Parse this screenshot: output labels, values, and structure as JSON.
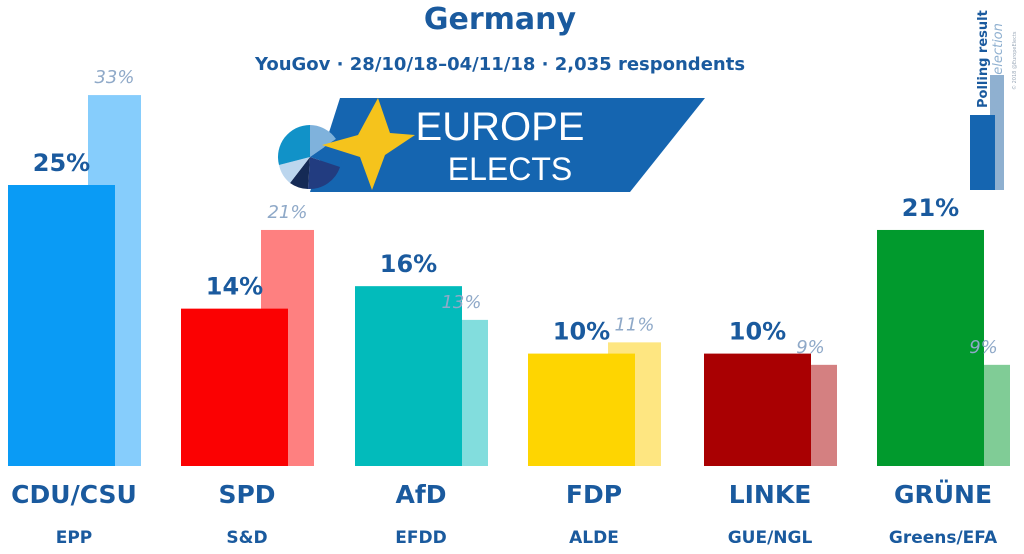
{
  "header": {
    "title": "Germany",
    "subtitle": "YouGov · 28/10/18–04/11/18 · 2,035 respondents"
  },
  "logo": {
    "line1": "EUROPE",
    "line2": "ELECTS",
    "banner_color": "#1565b0",
    "star_color": "#f5c31c"
  },
  "legend": {
    "current_label": "Polling result",
    "previous_label": "2017 election",
    "copyright": "© 2018 @EuropeElects",
    "current_color": "#1565b0",
    "previous_color": "#8fb0d0"
  },
  "chart_data": {
    "type": "bar",
    "title": "Germany",
    "subtitle": "YouGov · 28/10/18–04/11/18 · 2,035 respondents",
    "xlabel": "",
    "ylabel": "",
    "ylim": [
      0,
      35
    ],
    "grid": false,
    "legend_placement": "top-right",
    "categories": [
      "CDU/CSU",
      "SPD",
      "AfD",
      "FDP",
      "LINKE",
      "GRÜNE"
    ],
    "groups": [
      "EPP",
      "S&D",
      "EFDD",
      "ALDE",
      "GUE/NGL",
      "Greens/EFA"
    ],
    "series": [
      {
        "name": "Polling result",
        "values": [
          25,
          14,
          16,
          10,
          10,
          21
        ],
        "labels": [
          "25%",
          "14%",
          "16%",
          "10%",
          "10%",
          "21%"
        ],
        "colors": [
          "#0a9bf5",
          "#fb0102",
          "#02bbbb",
          "#fed501",
          "#a90002",
          "#019a2d"
        ]
      },
      {
        "name": "2017 election",
        "values": [
          33,
          21,
          13,
          11,
          9,
          9
        ],
        "labels": [
          "33%",
          "21%",
          "13%",
          "11%",
          "9%",
          "9%"
        ],
        "colors": [
          "#86cdfc",
          "#fe8080",
          "#82dddd",
          "#fee681",
          "#d48081",
          "#80cc96"
        ]
      }
    ]
  }
}
